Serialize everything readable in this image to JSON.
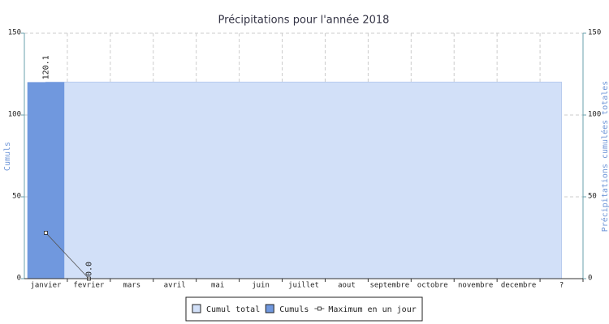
{
  "chart_data": {
    "type": "bar",
    "title": "Précipitations pour l'année 2018",
    "y_label": "Cumuls",
    "y2_label": "Précipitations cumulées totales",
    "categories": [
      "janvier",
      "fevrier",
      "mars",
      "avril",
      "mai",
      "juin",
      "juillet",
      "aout",
      "septembre",
      "octobre",
      "novembre",
      "decembre",
      "?"
    ],
    "series": [
      {
        "name": "Cumul total",
        "color": "#d2e0f8",
        "kind": "area",
        "axis": "y2",
        "values": [
          120.1,
          120.1,
          120.1,
          120.1,
          120.1,
          120.1,
          120.1,
          120.1,
          120.1,
          120.1,
          120.1,
          120.1,
          120.1
        ]
      },
      {
        "name": "Cumuls",
        "color": "#7098de",
        "kind": "bar",
        "values": [
          120.1,
          0,
          null,
          null,
          null,
          null,
          null,
          null,
          null,
          null,
          null,
          null,
          null
        ],
        "value_labels": [
          "120.1",
          "0.0",
          null,
          null,
          null,
          null,
          null,
          null,
          null,
          null,
          null,
          null,
          null
        ]
      },
      {
        "name": "Maximum en un jour",
        "color": "#555555",
        "kind": "line",
        "values": [
          28,
          0,
          null,
          null,
          null,
          null,
          null,
          null,
          null,
          null,
          null,
          null,
          null
        ]
      }
    ],
    "ylim": [
      0,
      150
    ],
    "yticks": [
      0,
      50,
      100,
      150
    ],
    "y2lim": [
      0,
      150
    ],
    "y2ticks": [
      0,
      50,
      100,
      150
    ],
    "grid": true,
    "legend": "bottom"
  }
}
